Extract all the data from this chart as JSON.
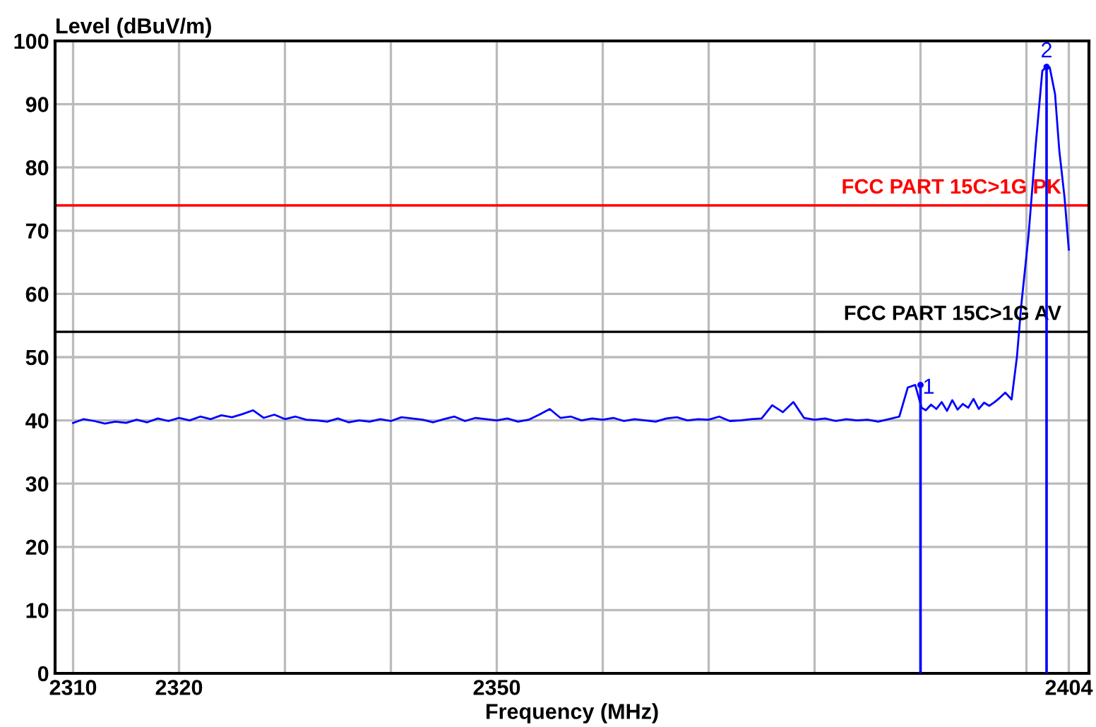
{
  "chart_data": {
    "type": "line",
    "xlabel": "Frequency (MHz)",
    "ylabel": "Level (dBuV/m)",
    "x": [
      2310,
      2311,
      2312,
      2313,
      2314,
      2315,
      2316,
      2317,
      2318,
      2319,
      2320,
      2321,
      2322,
      2323,
      2324,
      2325,
      2326,
      2327,
      2328,
      2329,
      2330,
      2331,
      2332,
      2333,
      2334,
      2335,
      2336,
      2337,
      2338,
      2339,
      2340,
      2341,
      2342,
      2343,
      2344,
      2345,
      2346,
      2347,
      2348,
      2349,
      2350,
      2351,
      2352,
      2353,
      2354,
      2355,
      2356,
      2357,
      2358,
      2359,
      2360,
      2361,
      2362,
      2363,
      2364,
      2365,
      2366,
      2367,
      2368,
      2369,
      2370,
      2371,
      2372,
      2373,
      2374,
      2375,
      2376,
      2377,
      2378,
      2379,
      2380,
      2381,
      2382,
      2383,
      2384,
      2385,
      2386,
      2387,
      2388,
      2388.8,
      2389.5,
      2390.1,
      2390.5,
      2391,
      2391.5,
      2392,
      2392.5,
      2393,
      2393.5,
      2394,
      2394.5,
      2395,
      2395.5,
      2396,
      2396.5,
      2397,
      2397.5,
      2398,
      2398.6,
      2399.1,
      2399.5,
      2400.2,
      2400.9,
      2401.5,
      2401.9,
      2402.2,
      2402.7,
      2403.1,
      2403.6,
      2404.0
    ],
    "series": [
      {
        "color": "#0000ff",
        "values": [
          39.6,
          40.2,
          39.9,
          39.5,
          39.8,
          39.6,
          40.1,
          39.7,
          40.3,
          39.9,
          40.4,
          40.0,
          40.6,
          40.2,
          40.8,
          40.5,
          41.0,
          41.6,
          40.4,
          40.9,
          40.2,
          40.6,
          40.1,
          40.0,
          39.8,
          40.3,
          39.7,
          40.0,
          39.8,
          40.2,
          39.9,
          40.5,
          40.3,
          40.1,
          39.7,
          40.2,
          40.6,
          39.9,
          40.4,
          40.2,
          40.0,
          40.3,
          39.8,
          40.1,
          40.9,
          41.8,
          40.4,
          40.6,
          40.0,
          40.3,
          40.1,
          40.4,
          39.9,
          40.2,
          40.0,
          39.8,
          40.3,
          40.5,
          40.0,
          40.2,
          40.1,
          40.6,
          39.9,
          40.0,
          40.2,
          40.3,
          42.4,
          41.3,
          42.9,
          40.4,
          40.1,
          40.3,
          39.9,
          40.2,
          40.0,
          40.1,
          39.8,
          40.2,
          40.6,
          45.2,
          45.6,
          42.0,
          41.6,
          42.5,
          41.8,
          42.9,
          41.5,
          43.2,
          41.7,
          42.6,
          42.0,
          43.4,
          41.8,
          42.8,
          42.3,
          42.9,
          43.6,
          44.4,
          43.3,
          50.0,
          58.0,
          69.3,
          84.0,
          95.3,
          95.9,
          95.8,
          91.6,
          82.7,
          75.2,
          67.0
        ]
      },
      {
        "type": "lollipop",
        "color": "#0000ff",
        "marker": "circle",
        "x": [
          2390,
          2401.9
        ],
        "values": [
          45.6,
          95.9
        ]
      }
    ],
    "xlim": [
      2308.3,
      2405.9
    ],
    "ylim": [
      0,
      100
    ],
    "xticks": [
      2310,
      2320,
      {
        "value": 2330,
        "label": null
      },
      {
        "value": 2340,
        "label": null
      },
      2350,
      {
        "value": 2360,
        "label": null
      },
      {
        "value": 2370,
        "label": null
      },
      {
        "value": 2380,
        "label": null
      },
      {
        "value": 2390,
        "label": null
      },
      {
        "value": 2400,
        "label": null
      },
      2404
    ],
    "yticks": [
      0,
      10,
      20,
      30,
      40,
      50,
      60,
      70,
      80,
      90,
      100
    ],
    "ref_lines": [
      {
        "axis": "y",
        "value": 74,
        "label": "FCC PART 15C>1G PK",
        "color": "#ff0000"
      },
      {
        "axis": "y",
        "value": 54,
        "label": "FCC PART 15C>1G AV",
        "color": "#000000"
      }
    ],
    "annotations": [
      {
        "text": "1",
        "x": 2390,
        "y": 45.6
      },
      {
        "text": "2",
        "x": 2401.9,
        "y": 95.9
      }
    ],
    "grid": true,
    "legend": false,
    "marker": "none",
    "line_style": "solid"
  }
}
